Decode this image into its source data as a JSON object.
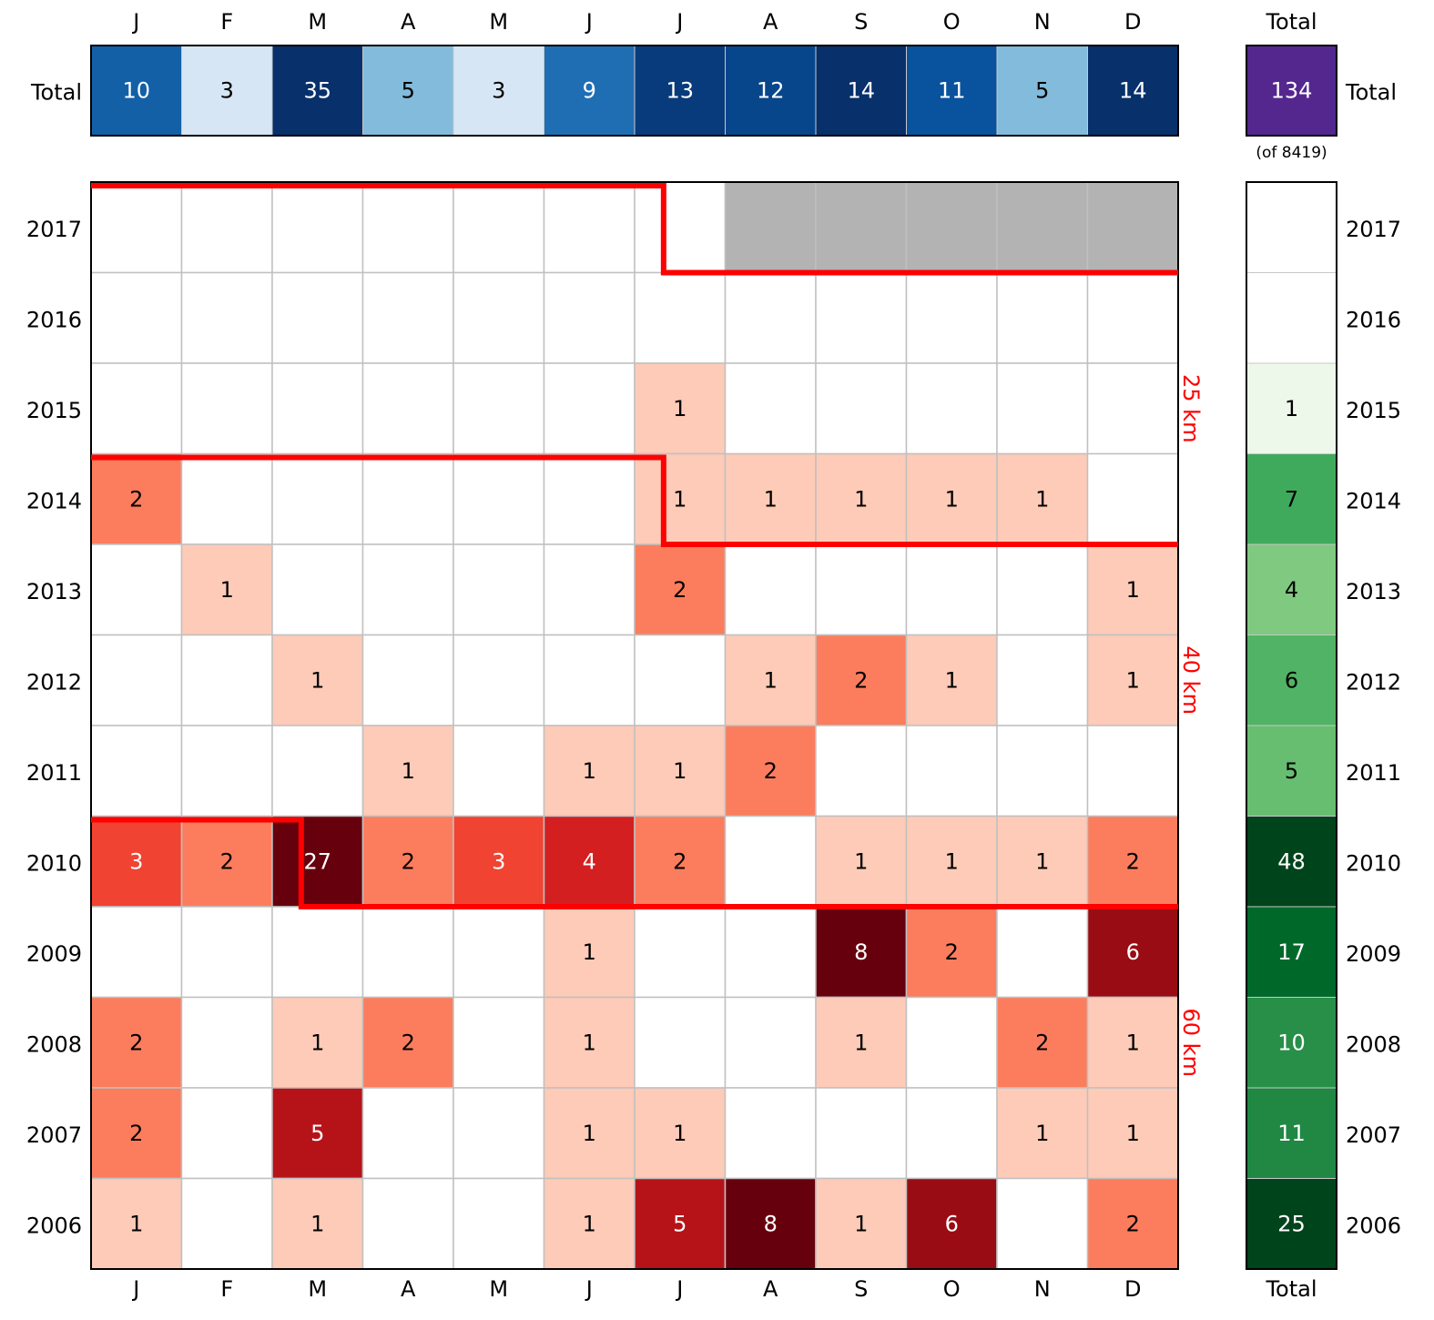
{
  "chart_data": {
    "type": "heatmap",
    "months": [
      "J",
      "F",
      "M",
      "A",
      "M",
      "J",
      "J",
      "A",
      "S",
      "O",
      "N",
      "D"
    ],
    "years": [
      "2017",
      "2016",
      "2015",
      "2014",
      "2013",
      "2012",
      "2011",
      "2010",
      "2009",
      "2008",
      "2007",
      "2006"
    ],
    "values": [
      [
        null,
        null,
        null,
        null,
        null,
        null,
        null,
        "nodata",
        "nodata",
        "nodata",
        "nodata",
        "nodata"
      ],
      [
        null,
        null,
        null,
        null,
        null,
        null,
        null,
        null,
        null,
        null,
        null,
        null
      ],
      [
        null,
        null,
        null,
        null,
        null,
        null,
        1,
        null,
        null,
        null,
        null,
        null
      ],
      [
        2,
        null,
        null,
        null,
        null,
        null,
        1,
        1,
        1,
        1,
        1,
        null
      ],
      [
        null,
        1,
        null,
        null,
        null,
        null,
        2,
        null,
        null,
        null,
        null,
        1
      ],
      [
        null,
        null,
        1,
        null,
        null,
        null,
        null,
        1,
        2,
        1,
        null,
        1
      ],
      [
        null,
        null,
        null,
        1,
        null,
        1,
        1,
        2,
        null,
        null,
        null,
        null
      ],
      [
        3,
        2,
        27,
        2,
        3,
        4,
        2,
        null,
        1,
        1,
        1,
        2
      ],
      [
        null,
        null,
        null,
        null,
        null,
        1,
        null,
        null,
        8,
        2,
        null,
        6
      ],
      [
        2,
        null,
        1,
        2,
        null,
        1,
        null,
        null,
        1,
        null,
        2,
        1
      ],
      [
        2,
        null,
        5,
        null,
        null,
        1,
        1,
        null,
        null,
        null,
        1,
        1
      ],
      [
        1,
        null,
        1,
        null,
        null,
        1,
        5,
        8,
        1,
        6,
        null,
        2
      ]
    ],
    "month_totals": [
      10,
      3,
      35,
      5,
      3,
      9,
      13,
      12,
      14,
      11,
      5,
      14
    ],
    "year_totals": [
      null,
      null,
      1,
      7,
      4,
      6,
      5,
      48,
      17,
      10,
      11,
      25
    ],
    "grand_total": "134",
    "grand_total_note": "(of 8419)",
    "total_label": "Total",
    "boundaries": [
      {
        "label": "25 km",
        "boundary_year": "2017",
        "boundary_month_index": 6
      },
      {
        "label": "40 km",
        "boundary_year": "2014",
        "boundary_month_index": 6
      },
      {
        "label": "60 km",
        "boundary_year": "2010",
        "boundary_month_index": 2
      }
    ],
    "colormaps": {
      "cells": "Reds",
      "month_totals": "Blues",
      "year_totals": "Greens",
      "grand_total": "#54278f"
    },
    "nodata_color": "#b3b3b3",
    "boundary_color": "#ff0000",
    "grid": true
  }
}
